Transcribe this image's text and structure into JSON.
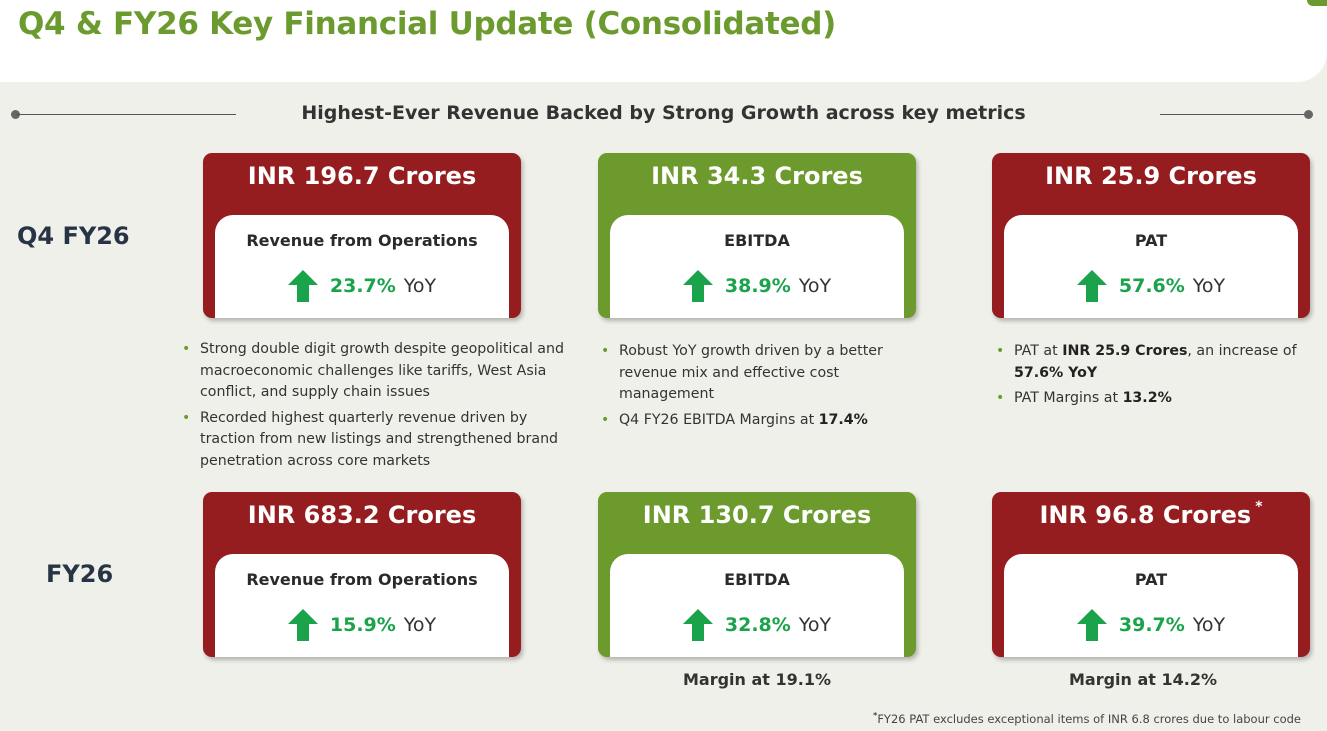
{
  "header": {
    "title": "Q4 & FY26 Key Financial Update (Consolidated)"
  },
  "subtitle": "Highest-Ever Revenue Backed by Strong Growth across key metrics",
  "q4": {
    "label": "Q4 FY26",
    "revenue": {
      "amount": "INR 196.7 Crores",
      "metric": "Revenue from Operations",
      "growth": "23.7%",
      "yoy": "YoY"
    },
    "ebitda": {
      "amount": "INR 34.3 Crores",
      "metric": "EBITDA",
      "growth": "38.9%",
      "yoy": "YoY"
    },
    "pat": {
      "amount": "INR 25.9 Crores",
      "metric": "PAT",
      "growth": "57.6%",
      "yoy": "YoY"
    },
    "revenue_bullets": [
      "Strong double digit growth despite geopolitical and macroeconomic challenges like tariffs, West Asia conflict, and supply chain issues",
      "Recorded highest quarterly revenue driven by traction from new listings and strengthened brand penetration across core markets"
    ],
    "ebitda_bullets": {
      "b1": "Robust YoY growth driven by a better revenue mix and effective cost management",
      "b2_prefix": "Q4 FY26 EBITDA Margins at ",
      "b2_value": "17.4%"
    },
    "pat_bullets": {
      "b1_prefix": "PAT at ",
      "b1_value": "INR 25.9 Crores",
      "b1_mid": ", an increase of ",
      "b1_value2": "57.6% YoY",
      "b2_prefix": "PAT Margins at ",
      "b2_value": "13.2%"
    }
  },
  "fy": {
    "label": "FY26",
    "revenue": {
      "amount": "INR 683.2 Crores",
      "metric": "Revenue from Operations",
      "growth": "15.9%",
      "yoy": "YoY"
    },
    "ebitda": {
      "amount": "INR 130.7 Crores",
      "metric": "EBITDA",
      "growth": "32.8%",
      "yoy": "YoY",
      "margin": "Margin at 19.1%"
    },
    "pat": {
      "amount": "INR 96.8 Crores",
      "asterisk": "*",
      "metric": "PAT",
      "growth": "39.7%",
      "yoy": "YoY",
      "margin": "Margin at 14.2%"
    }
  },
  "footnote": {
    "mark": "*",
    "text": "FY26 PAT excludes exceptional items of INR 6.8 crores due to labour code"
  },
  "colors": {
    "title_green": "#6b9a2e",
    "card_red": "#951c1f",
    "card_green": "#6d9a2d",
    "growth_green": "#1aa34a"
  }
}
